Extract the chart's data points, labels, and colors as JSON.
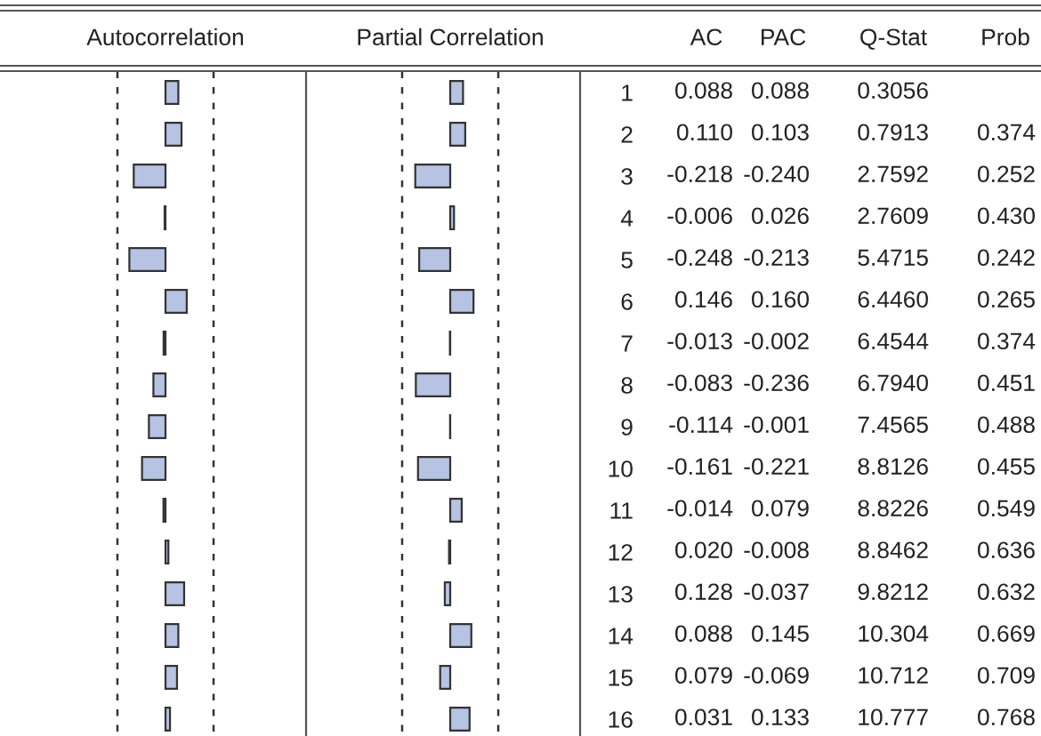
{
  "chart_data": [
    {
      "type": "bar",
      "orientation": "horizontal",
      "title": "Autocorrelation",
      "categories": [
        "1",
        "2",
        "3",
        "4",
        "5",
        "6",
        "7",
        "8",
        "9",
        "10",
        "11",
        "12",
        "13",
        "14",
        "15",
        "16"
      ],
      "annotations": [
        "AC"
      ],
      "values": [
        0.088,
        0.11,
        -0.218,
        -0.006,
        -0.248,
        0.146,
        -0.013,
        -0.083,
        -0.114,
        -0.161,
        -0.014,
        0.02,
        0.128,
        0.088,
        0.079,
        0.031
      ],
      "color": "#b7c3e3",
      "value_labels": [
        "0.088",
        "0.110",
        "-0.218",
        "-0.006",
        "-0.248",
        "0.146",
        "-0.013",
        "-0.083",
        "-0.114",
        "-0.161",
        "-0.014",
        "0.020",
        "0.128",
        "0.088",
        "0.079",
        "0.031"
      ],
      "ref_lines": [
        {
          "axis": "x",
          "value": -0.33,
          "line_style": "dashed"
        },
        {
          "axis": "x",
          "value": 0.33,
          "line_style": "dashed"
        }
      ]
    },
    {
      "type": "bar",
      "orientation": "horizontal",
      "title": "Partial Correlation",
      "categories": [
        null,
        null,
        null,
        null,
        null,
        null,
        null,
        null,
        null,
        null,
        null,
        null,
        null,
        null,
        null,
        null
      ],
      "annotations": [
        "PAC"
      ],
      "values": [
        0.088,
        0.103,
        -0.24,
        0.026,
        -0.213,
        0.16,
        -0.002,
        -0.236,
        -0.001,
        -0.221,
        0.079,
        -0.008,
        -0.037,
        0.145,
        -0.069,
        0.133
      ],
      "color": "#b7c3e3",
      "value_labels": [
        "0.088",
        "0.103",
        "-0.240",
        "0.026",
        "-0.213",
        "0.160",
        "-0.002",
        "-0.236",
        "-0.001",
        "-0.221",
        "0.079",
        "-0.008",
        "-0.037",
        "0.145",
        "-0.069",
        "0.133"
      ],
      "ref_lines": [
        {
          "axis": "x",
          "value": -0.33,
          "line_style": "dashed"
        },
        {
          "axis": "x",
          "value": 0.33,
          "line_style": "dashed"
        }
      ]
    },
    {
      "type": "other",
      "annotations": [
        "Q-Stat",
        "Prob",
        "0.3056",
        "0.7913",
        "2.7592",
        "2.7609",
        "5.4715",
        "6.4460",
        "6.4544",
        "6.7940",
        "7.4565",
        "8.8126",
        "8.8226",
        "8.8462",
        "9.8212",
        "10.304",
        "10.712",
        "10.777",
        "0.374",
        "0.252",
        "0.430",
        "0.242",
        "0.265",
        "0.374",
        "0.451",
        "0.488",
        "0.455",
        "0.549",
        "0.636",
        "0.632",
        "0.669",
        "0.709",
        "0.768"
      ]
    }
  ]
}
